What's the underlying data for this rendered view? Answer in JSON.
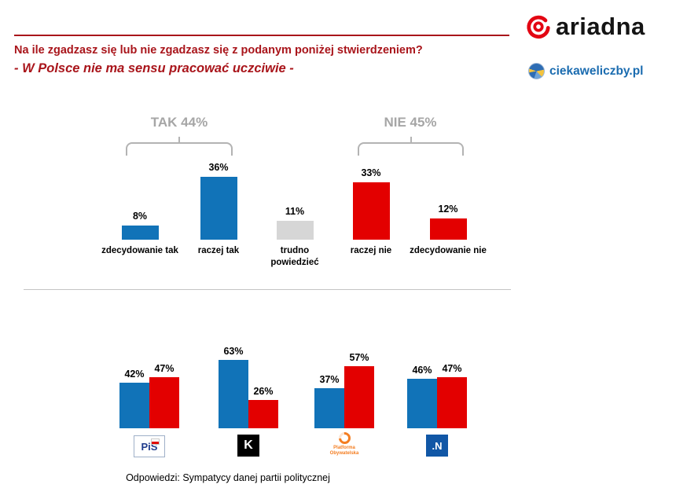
{
  "header": {
    "title": "Na ile zgadzasz się lub nie zgadzasz się z podanym poniżej stwierdzeniem?",
    "subtitle": "- W Polsce nie ma sensu pracować uczciwie -"
  },
  "logos": {
    "ariadna_text": "ariadna",
    "ciekaweliczby_text": "ciekaweliczby.pl"
  },
  "colors": {
    "blue": "#1173b8",
    "red": "#e30000",
    "gray": "#d6d6d6",
    "dark_red": "#a9151b",
    "label_gray": "#a6a6a6"
  },
  "chart_data": [
    {
      "type": "bar",
      "title": "Na ile zgadzasz się lub nie zgadzasz się z podanym poniżej stwierdzeniem? - W Polsce nie ma sensu pracować uczciwie -",
      "categories": [
        "zdecydowanie tak",
        "raczej tak",
        "trudno powiedzieć",
        "raczej nie",
        "zdecydowanie nie"
      ],
      "values": [
        8,
        36,
        11,
        33,
        12
      ],
      "value_labels": [
        "8%",
        "36%",
        "11%",
        "33%",
        "12%"
      ],
      "bar_colors": [
        "blue",
        "blue",
        "gray",
        "red",
        "red"
      ],
      "ylim": [
        0,
        40
      ],
      "grid": false,
      "legend": "none",
      "groups": [
        {
          "label": "TAK 44%",
          "total": 44,
          "bars": [
            "zdecydowanie tak",
            "raczej tak"
          ]
        },
        {
          "label": "NIE 45%",
          "total": 45,
          "bars": [
            "raczej nie",
            "zdecydowanie nie"
          ]
        }
      ]
    },
    {
      "type": "bar",
      "title": "Odpowiedzi: Sympatycy danej partii politycznej",
      "categories": [
        "PiS",
        "Kukiz'15",
        "Platforma Obywatelska",
        "Nowoczesna"
      ],
      "series": [
        {
          "name": "tak",
          "color": "blue",
          "values": [
            42,
            63,
            37,
            46
          ],
          "value_labels": [
            "42%",
            "63%",
            "37%",
            "46%"
          ]
        },
        {
          "name": "nie",
          "color": "red",
          "values": [
            47,
            26,
            57,
            47
          ],
          "value_labels": [
            "47%",
            "26%",
            "57%",
            "47%"
          ]
        }
      ],
      "ylim": [
        0,
        70
      ],
      "grid": false,
      "legend": "none"
    }
  ],
  "parties": [
    {
      "name": "PiS",
      "logo_text": "PiS"
    },
    {
      "name": "Kukiz'15",
      "logo_text": "K"
    },
    {
      "name": "Platforma Obywatelska",
      "logo_text": "Platforma Obywatelska"
    },
    {
      "name": "Nowoczesna",
      "logo_text": ".N"
    }
  ],
  "footer": {
    "caption": "Odpowiedzi: Sympatycy danej partii politycznej"
  }
}
